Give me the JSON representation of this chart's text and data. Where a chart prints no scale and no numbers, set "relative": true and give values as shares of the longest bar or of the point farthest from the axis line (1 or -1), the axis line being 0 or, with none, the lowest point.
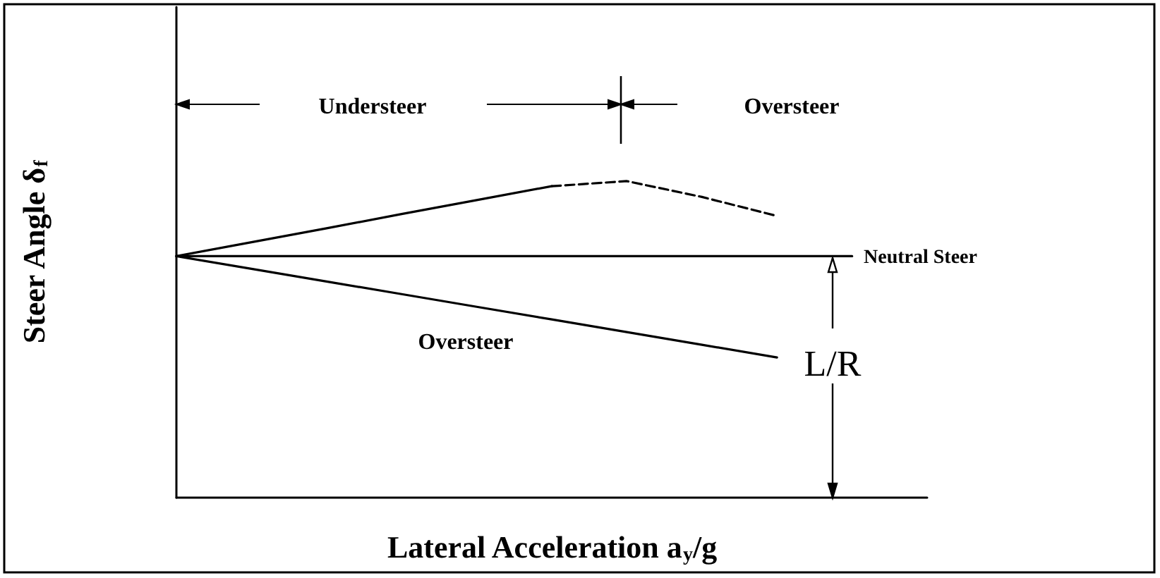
{
  "chart_data": {
    "type": "line",
    "relative": true,
    "xlabel": "Lateral Acceleration a$_{y}$/g",
    "ylabel": "Steer Angle δ$_{f}$",
    "categories": [
      null,
      null,
      null,
      null,
      null,
      null,
      null,
      null,
      null,
      null,
      null
    ],
    "grid": false,
    "marker": "none",
    "series": [
      {
        "color": "#000000",
        "line_style": "solid",
        "values": [
          0.763,
          0.807,
          0.851,
          0.896,
          0.94,
          0.984,
          null,
          null,
          null,
          null,
          null
        ]
      },
      {
        "color": "#000000",
        "line_style": "dashed",
        "values": [
          null,
          null,
          null,
          null,
          null,
          0.984,
          1,
          0.95,
          0.89,
          null,
          null
        ]
      },
      {
        "color": "#000000",
        "line_style": "solid",
        "values": [
          0.763,
          0.763,
          0.763,
          0.763,
          0.763,
          0.763,
          0.763,
          0.763,
          0.763,
          0.763,
          null
        ]
      },
      {
        "color": "#000000",
        "line_style": "solid",
        "values": [
          0.763,
          0.723,
          0.683,
          0.643,
          0.603,
          0.563,
          0.523,
          0.483,
          0.443,
          null,
          null
        ]
      }
    ],
    "annotations": [
      "Understeer",
      "Oversteer",
      "Neutral Steer",
      "Oversteer",
      "L/R"
    ]
  }
}
